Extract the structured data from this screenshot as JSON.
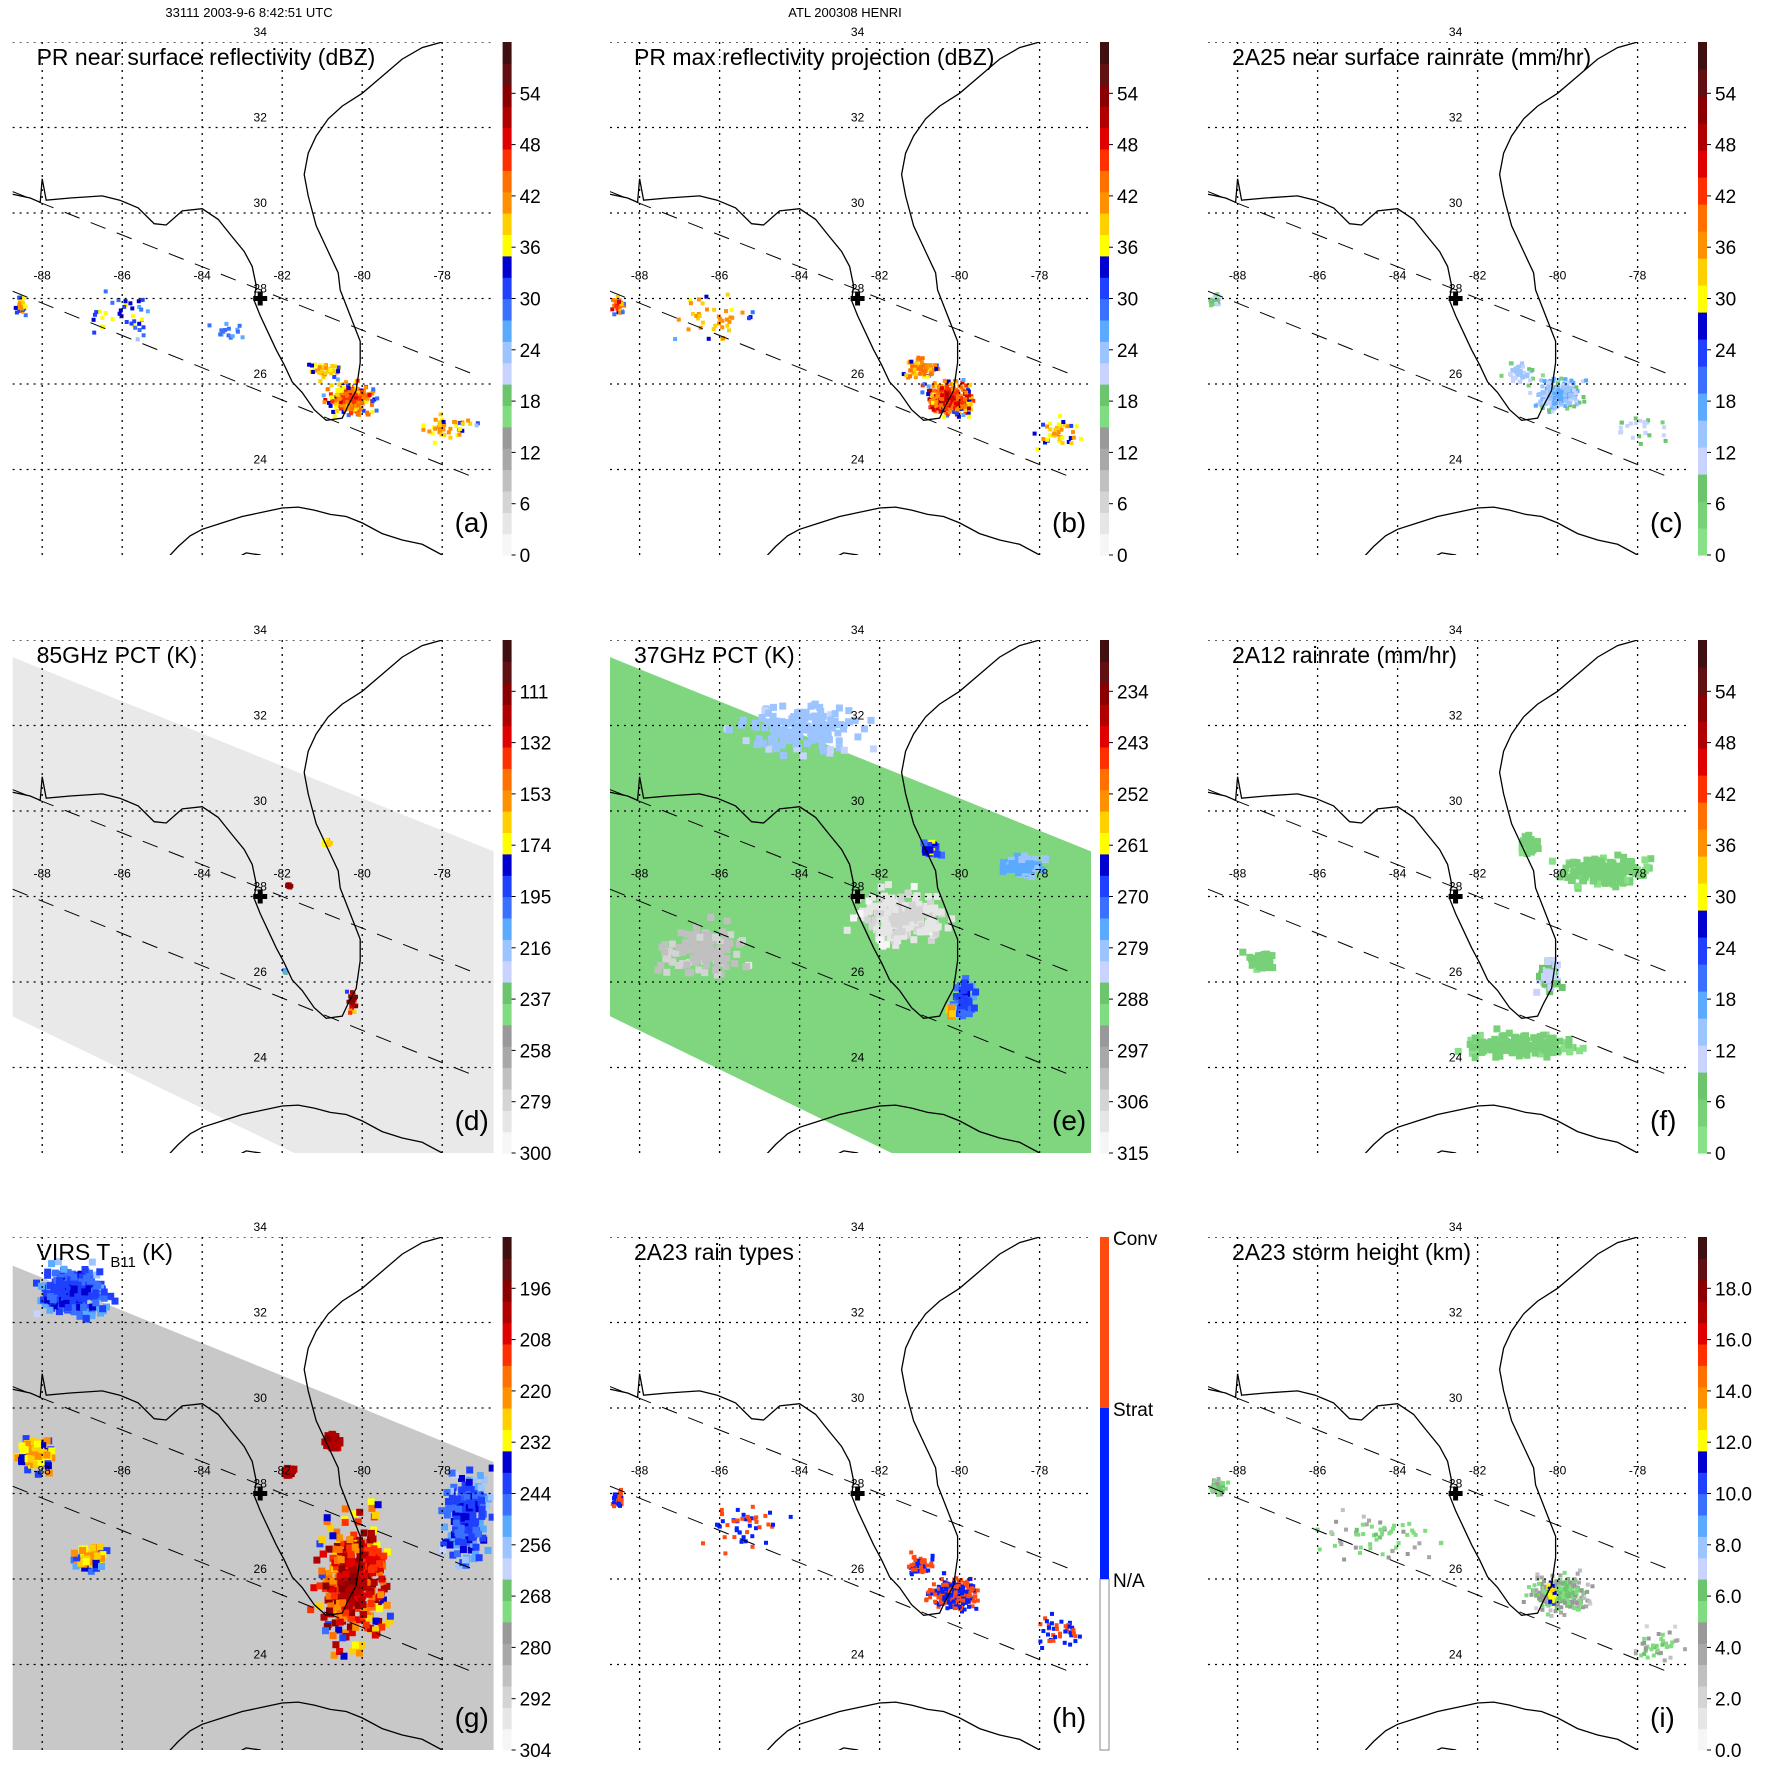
{
  "header": {
    "orbit_time": "33111 2003-9-6 8:42:51 UTC",
    "storm": "ATL 200308 HENRI"
  },
  "lon_labels": [
    "-88",
    "-86",
    "-84",
    "-82",
    "-80",
    "-78"
  ],
  "lat_labels": [
    "24",
    "26",
    "28",
    "30",
    "32",
    "34"
  ],
  "palettes": {
    "standard": [
      "#f6f6f6",
      "#e6e6e6",
      "#d4d4d4",
      "#c0c0c0",
      "#a8a8a8",
      "#999999",
      "#80dc80",
      "#6cc46c",
      "#c8d4ff",
      "#9cc4ff",
      "#5aaaff",
      "#3a70ff",
      "#2040ff",
      "#0000d0",
      "#ffff00",
      "#ffd000",
      "#ff9000",
      "#ff7000",
      "#ff3000",
      "#e00000",
      "#b00000",
      "#8a0000",
      "#601010",
      "#401010"
    ],
    "rain": [
      "#88e088",
      "#78d078",
      "#6cc46c",
      "#c8d4ff",
      "#9cc4ff",
      "#5aaaff",
      "#3a70ff",
      "#2040ff",
      "#0000d0",
      "#ffff00",
      "#ffd000",
      "#ff9000",
      "#ff7000",
      "#ff3000",
      "#e00000",
      "#b00000",
      "#8a0000",
      "#601010",
      "#401010"
    ],
    "raintype": [
      "#ffffff",
      "#0020ff",
      "#ff4a10"
    ]
  },
  "chart_data": {
    "type": "heatmap",
    "map_extent": {
      "lon": [
        -88.74,
        -76.7
      ],
      "lat": [
        22,
        34
      ]
    },
    "panels": [
      {
        "id": "a",
        "title": "PR near surface reflectivity (dBZ)",
        "letter": "(a)",
        "palette": "standard",
        "range": [
          0,
          60
        ],
        "colorbar_labels": [
          "0",
          "6",
          "12",
          "18",
          "24",
          "30",
          "36",
          "42",
          "48",
          "54"
        ]
      },
      {
        "id": "b",
        "title": "PR max reflectivity projection (dBZ)",
        "letter": "(b)",
        "palette": "standard",
        "range": [
          0,
          60
        ],
        "colorbar_labels": [
          "0",
          "6",
          "12",
          "18",
          "24",
          "30",
          "36",
          "42",
          "48",
          "54"
        ]
      },
      {
        "id": "c",
        "title": "2A25 near surface rainrate (mm/hr)",
        "letter": "(c)",
        "palette": "rain",
        "range": [
          0,
          60
        ],
        "colorbar_labels": [
          "0",
          "6",
          "12",
          "18",
          "24",
          "30",
          "36",
          "42",
          "48",
          "54"
        ]
      },
      {
        "id": "d",
        "title": "85GHz PCT (K)",
        "letter": "(d)",
        "palette": "standard",
        "range": [
          300,
          90
        ],
        "colorbar_labels": [
          "300",
          "279",
          "258",
          "237",
          "216",
          "195",
          "174",
          "153",
          "132",
          "111"
        ]
      },
      {
        "id": "e",
        "title": "37GHz PCT (K)",
        "letter": "(e)",
        "palette": "standard",
        "range": [
          315,
          225
        ],
        "colorbar_labels": [
          "315",
          "306",
          "297",
          "288",
          "279",
          "270",
          "261",
          "252",
          "243",
          "234"
        ]
      },
      {
        "id": "f",
        "title": "2A12 rainrate (mm/hr)",
        "letter": "(f)",
        "palette": "rain",
        "range": [
          0,
          60
        ],
        "colorbar_labels": [
          "0",
          "6",
          "12",
          "18",
          "24",
          "30",
          "36",
          "42",
          "48",
          "54"
        ]
      },
      {
        "id": "g",
        "title_main": "VIRS T",
        "title_sub": "B11",
        "title_unit": " (K)",
        "letter": "(g)",
        "palette": "standard",
        "range": [
          304,
          184
        ],
        "colorbar_labels": [
          "304",
          "292",
          "280",
          "268",
          "256",
          "244",
          "232",
          "220",
          "208",
          "196"
        ]
      },
      {
        "id": "h",
        "title": "2A23 rain types",
        "letter": "(h)",
        "palette": "raintype",
        "colorbar_labels": [
          "N/A",
          "Strat",
          "Conv"
        ]
      },
      {
        "id": "i",
        "title": "2A23 storm height (km)",
        "letter": "(i)",
        "palette": "standard",
        "range": [
          0,
          20
        ],
        "colorbar_labels": [
          "0.0",
          "2.0",
          "4.0",
          "6.0",
          "8.0",
          "10.0",
          "12.0",
          "14.0",
          "16.0",
          "18.0"
        ]
      }
    ]
  }
}
